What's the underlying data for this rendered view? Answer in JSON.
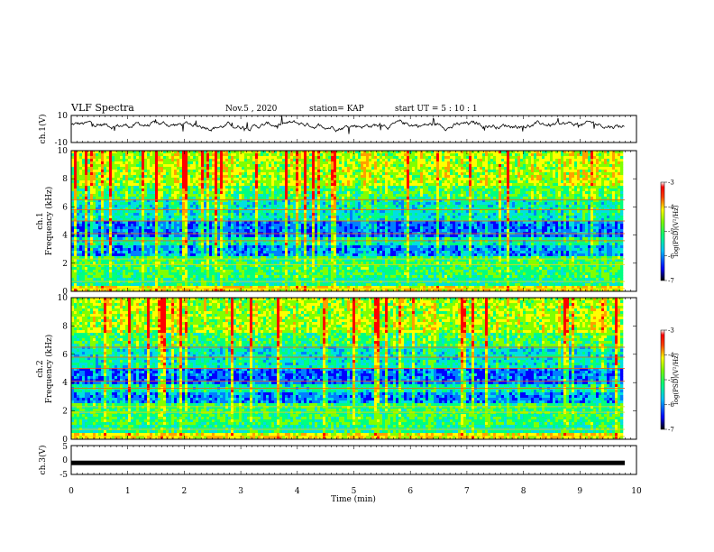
{
  "header": {
    "title": "VLF Spectra",
    "date": "Nov.5 , 2020",
    "station": "station= KAP",
    "start": "start UT = 5 : 10 : 1"
  },
  "chart_data": [
    {
      "type": "line",
      "ylabel": "ch.1(V)",
      "ylim": [
        -10,
        10
      ],
      "yticks": [
        "10",
        "-10"
      ],
      "xlim": [
        0,
        10
      ]
    },
    {
      "type": "heatmap",
      "ylabel_top": "ch.1",
      "ylabel": "Frequency (kHz)",
      "ylim": [
        0,
        10
      ],
      "yticks": [
        "10",
        "8",
        "6",
        "4",
        "2",
        "0"
      ],
      "colorbar": {
        "label": "log(PSD)(V²/Hz)",
        "range": [
          -7,
          -3
        ],
        "ticks": [
          "-3",
          "-4",
          "-5",
          "-6",
          "-7"
        ]
      }
    },
    {
      "type": "heatmap",
      "ylabel_top": "ch.2",
      "ylabel": "Frequency (kHz)",
      "ylim": [
        0,
        10
      ],
      "yticks": [
        "10",
        "8",
        "6",
        "4",
        "2",
        "0"
      ],
      "colorbar": {
        "label": "log(PSD)(V²/Hz)",
        "range": [
          -7,
          -3
        ],
        "ticks": [
          "-3",
          "-4",
          "-5",
          "-6",
          "-7"
        ]
      }
    },
    {
      "type": "line",
      "ylabel": "ch.3(V)",
      "ylim": [
        -5,
        5
      ],
      "yticks": [
        "5",
        "0",
        "-5"
      ],
      "level": -1
    }
  ],
  "xaxis": {
    "label": "Time (min)",
    "range": [
      0,
      10
    ],
    "ticks": [
      "0",
      "1",
      "2",
      "3",
      "4",
      "5",
      "6",
      "7",
      "8",
      "9",
      "10"
    ]
  },
  "colors": {
    "palette": [
      "#000080",
      "#0000ff",
      "#0080ff",
      "#00e0e0",
      "#00ff80",
      "#80ff00",
      "#ffff00",
      "#ffa000",
      "#ff0000"
    ]
  }
}
